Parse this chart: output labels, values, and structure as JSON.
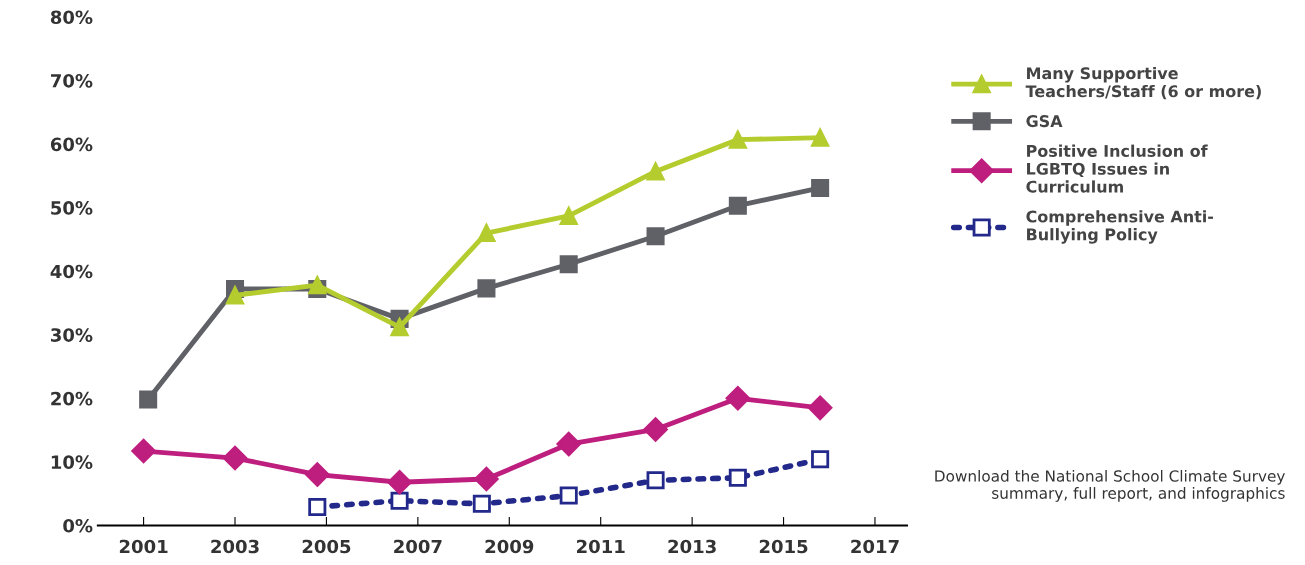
{
  "chart_data": {
    "type": "line",
    "xlim": [
      2000.0,
      2017.7
    ],
    "xticks": [
      2001,
      2003,
      2005,
      2007,
      2009,
      2011,
      2013,
      2015,
      2017
    ],
    "ylim": [
      0,
      80
    ],
    "yticks": [
      {
        "value": 0,
        "label": "0%"
      },
      {
        "value": 10,
        "label": "10%"
      },
      {
        "value": 20,
        "label": "20%"
      },
      {
        "value": 30,
        "label": "30%"
      },
      {
        "value": 40,
        "label": "40%"
      },
      {
        "value": 50,
        "label": "50%"
      },
      {
        "value": 60,
        "label": "60%"
      },
      {
        "value": 70,
        "label": "70%"
      },
      {
        "value": 80,
        "label": "80%"
      }
    ],
    "grid": false,
    "legend": "right",
    "tick_labels": "xy",
    "series": [
      {
        "name": "Many Supportive\nTeachers/Staff (6 or more)",
        "color": "#b5cc2e",
        "marker": "triangle",
        "line_style": "solid",
        "x": [
          2003.0,
          2004.8,
          2006.6,
          2008.5,
          2010.3,
          2012.2,
          2014.0,
          2015.8
        ],
        "values": [
          36.2,
          37.8,
          31.2,
          46.0,
          48.7,
          55.7,
          60.7,
          61.0
        ]
      },
      {
        "name": "GSA",
        "color": "#5f6167",
        "marker": "square",
        "line_style": "solid",
        "x": [
          2001.1,
          2003.0,
          2004.8,
          2006.6,
          2008.5,
          2010.3,
          2012.2,
          2014.0,
          2015.8
        ],
        "values": [
          19.8,
          37.2,
          37.2,
          32.5,
          37.3,
          41.1,
          45.5,
          50.3,
          53.1
        ]
      },
      {
        "name": "Positive Inclusion of\nLGBTQ Issues in\nCurriculum",
        "color": "#be1e7e",
        "marker": "diamond",
        "line_style": "solid",
        "x": [
          2001.0,
          2003.0,
          2004.8,
          2006.6,
          2008.5,
          2010.3,
          2012.2,
          2014.0,
          2015.8
        ],
        "values": [
          11.7,
          10.6,
          8.0,
          6.8,
          7.3,
          12.8,
          15.1,
          20.0,
          18.5
        ]
      },
      {
        "name": "Comprehensive Anti-\nBullying Policy",
        "color": "#23298a",
        "marker": "square",
        "line_style": "dotted",
        "x": [
          2004.8,
          2006.6,
          2008.4,
          2010.3,
          2012.2,
          2014.0,
          2015.8
        ],
        "values": [
          2.9,
          3.9,
          3.4,
          4.7,
          7.1,
          7.5,
          10.4
        ]
      }
    ],
    "annotations": [
      "Download the National School Climate Survey\nsummary, full report, and infographics"
    ]
  }
}
